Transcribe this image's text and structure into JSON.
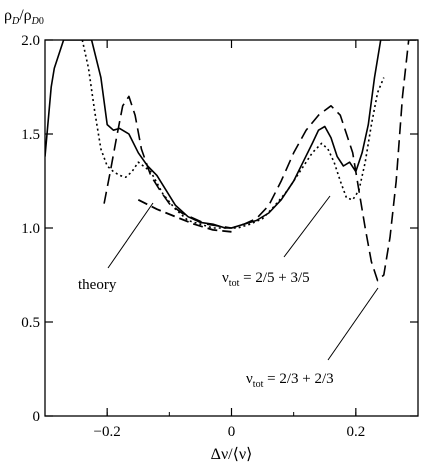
{
  "chart_data": {
    "type": "line",
    "ylabel": "ρD/ρD0",
    "xlabel": "Δν/⟨ν⟩",
    "xlim": [
      -0.3,
      0.3
    ],
    "ylim": [
      0,
      2.0
    ],
    "x_ticks": [
      -0.2,
      0,
      0.2
    ],
    "x_tick_labels": [
      "-0.2",
      "0",
      "0.2"
    ],
    "y_ticks": [
      0,
      0.5,
      1.0,
      1.5,
      2.0
    ],
    "y_tick_labels": [
      "0",
      "0.5",
      "1.0",
      "1.5",
      "2.0"
    ],
    "grid": false,
    "series": [
      {
        "style": "solid",
        "x": [
          -0.3,
          -0.29,
          -0.285,
          -0.27,
          -0.245,
          -0.225,
          -0.21,
          -0.2,
          -0.19,
          -0.18,
          -0.165,
          -0.15,
          -0.135,
          -0.12,
          -0.105,
          -0.09,
          -0.07,
          -0.05,
          -0.03,
          -0.01,
          0.0,
          0.02,
          0.04,
          0.06,
          0.08,
          0.1,
          0.115,
          0.13,
          0.14,
          0.15,
          0.16,
          0.17,
          0.18,
          0.19,
          0.2,
          0.21,
          0.22,
          0.23,
          0.24,
          0.25,
          0.255
        ],
        "y": [
          1.38,
          1.75,
          1.85,
          2.0,
          2.0,
          2.0,
          1.8,
          1.55,
          1.52,
          1.53,
          1.5,
          1.4,
          1.33,
          1.28,
          1.2,
          1.12,
          1.06,
          1.03,
          1.02,
          1.0,
          1.0,
          1.02,
          1.04,
          1.08,
          1.15,
          1.25,
          1.35,
          1.45,
          1.52,
          1.54,
          1.48,
          1.38,
          1.33,
          1.35,
          1.3,
          1.4,
          1.55,
          1.8,
          2.0,
          2.0,
          2.0
        ]
      },
      {
        "style": "dashed",
        "x": [
          -0.205,
          -0.195,
          -0.185,
          -0.175,
          -0.165,
          -0.155,
          -0.145,
          -0.13,
          -0.115,
          -0.1,
          -0.08,
          -0.06,
          -0.04,
          -0.02,
          0.0,
          0.02,
          0.04,
          0.06,
          0.08,
          0.1,
          0.12,
          0.14,
          0.16,
          0.175,
          0.185,
          0.195,
          0.205,
          0.215,
          0.225,
          0.235,
          0.245,
          0.255,
          0.265,
          0.275,
          0.285,
          0.3
        ],
        "y": [
          1.13,
          1.3,
          1.48,
          1.65,
          1.7,
          1.6,
          1.42,
          1.28,
          1.2,
          1.13,
          1.08,
          1.05,
          1.02,
          1.01,
          1.0,
          1.02,
          1.05,
          1.12,
          1.25,
          1.4,
          1.52,
          1.6,
          1.65,
          1.6,
          1.5,
          1.4,
          1.2,
          1.0,
          0.82,
          0.72,
          0.75,
          0.95,
          1.25,
          1.7,
          2.0,
          2.0
        ]
      },
      {
        "style": "dotted",
        "x": [
          -0.24,
          -0.23,
          -0.22,
          -0.21,
          -0.2,
          -0.19,
          -0.18,
          -0.17,
          -0.16,
          -0.15,
          -0.13,
          -0.11,
          -0.09,
          -0.07,
          -0.05,
          -0.03,
          -0.01,
          0.01,
          0.03,
          0.05,
          0.07,
          0.09,
          0.11,
          0.13,
          0.145,
          0.155,
          0.165,
          0.175,
          0.185,
          0.195,
          0.205,
          0.215,
          0.225,
          0.235,
          0.245
        ],
        "y": [
          2.0,
          1.85,
          1.62,
          1.42,
          1.33,
          1.3,
          1.28,
          1.27,
          1.3,
          1.35,
          1.3,
          1.18,
          1.1,
          1.04,
          1.02,
          1.0,
          1.0,
          1.0,
          1.02,
          1.05,
          1.12,
          1.2,
          1.3,
          1.4,
          1.45,
          1.42,
          1.35,
          1.25,
          1.16,
          1.15,
          1.2,
          1.35,
          1.55,
          1.72,
          1.8
        ]
      },
      {
        "style": "dashed-theory",
        "x": [
          -0.15,
          -0.12,
          -0.09,
          -0.06,
          -0.03,
          0.0
        ],
        "y": [
          1.15,
          1.1,
          1.06,
          1.02,
          0.99,
          0.98
        ]
      }
    ],
    "annotations": [
      {
        "text": "theory"
      },
      {
        "text": "ν",
        "sub": "tot",
        "rest": " = 2/5 + 3/5"
      },
      {
        "text": "ν",
        "sub": "tot",
        "rest": " = 2/3 + 2/3"
      }
    ]
  }
}
